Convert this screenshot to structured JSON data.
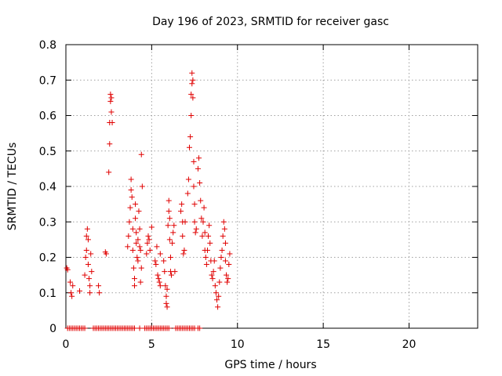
{
  "chart_data": {
    "type": "scatter",
    "title": "Day 196 of 2023, SRMTID for receiver gasc",
    "xlabel": "GPS time / hours",
    "ylabel": "SRMTID / TECUs",
    "xlim": [
      0,
      24
    ],
    "ylim": [
      0,
      0.8
    ],
    "xticks": [
      0,
      5,
      10,
      15,
      20
    ],
    "yticks": [
      0,
      0.1,
      0.2,
      0.3,
      0.4,
      0.5,
      0.6,
      0.7,
      0.8
    ],
    "xtick_labels": [
      "0",
      "5",
      "10",
      "15",
      "20"
    ],
    "ytick_labels": [
      "0",
      "0.1",
      "0.2",
      "0.3",
      "0.4",
      "0.5",
      "0.6",
      "0.7",
      "0.8"
    ],
    "grid": true,
    "marker": "+",
    "color": "#e00000",
    "series": [
      {
        "name": "SRMTID",
        "points": [
          [
            0.05,
            0.17
          ],
          [
            0.1,
            0.165
          ],
          [
            0.25,
            0.13
          ],
          [
            0.3,
            0.1
          ],
          [
            0.35,
            0.09
          ],
          [
            0.4,
            0.12
          ],
          [
            0.8,
            0.105
          ],
          [
            1.1,
            0.15
          ],
          [
            1.15,
            0.2
          ],
          [
            1.2,
            0.22
          ],
          [
            1.2,
            0.26
          ],
          [
            1.25,
            0.28
          ],
          [
            1.3,
            0.25
          ],
          [
            1.3,
            0.18
          ],
          [
            1.35,
            0.14
          ],
          [
            1.4,
            0.1
          ],
          [
            1.4,
            0.12
          ],
          [
            1.45,
            0.21
          ],
          [
            1.5,
            0.16
          ],
          [
            1.9,
            0.12
          ],
          [
            1.95,
            0.1
          ],
          [
            2.3,
            0.215
          ],
          [
            2.35,
            0.21
          ],
          [
            2.5,
            0.44
          ],
          [
            2.55,
            0.52
          ],
          [
            2.55,
            0.58
          ],
          [
            2.6,
            0.64
          ],
          [
            2.6,
            0.66
          ],
          [
            2.65,
            0.65
          ],
          [
            2.65,
            0.61
          ],
          [
            2.7,
            0.58
          ],
          [
            3.6,
            0.23
          ],
          [
            3.65,
            0.26
          ],
          [
            3.7,
            0.3
          ],
          [
            3.75,
            0.34
          ],
          [
            3.8,
            0.39
          ],
          [
            3.8,
            0.42
          ],
          [
            3.85,
            0.37
          ],
          [
            3.9,
            0.28
          ],
          [
            3.9,
            0.22
          ],
          [
            3.95,
            0.17
          ],
          [
            4.0,
            0.12
          ],
          [
            4.0,
            0.14
          ],
          [
            4.05,
            0.35
          ],
          [
            4.05,
            0.31
          ],
          [
            4.1,
            0.27
          ],
          [
            4.1,
            0.24
          ],
          [
            4.15,
            0.2
          ],
          [
            4.2,
            0.19
          ],
          [
            4.2,
            0.25
          ],
          [
            4.25,
            0.33
          ],
          [
            4.3,
            0.23
          ],
          [
            4.35,
            0.22
          ],
          [
            4.4,
            0.17
          ],
          [
            4.4,
            0.49
          ],
          [
            4.45,
            0.4
          ],
          [
            4.35,
            0.13
          ],
          [
            4.3,
            0.28
          ],
          [
            4.7,
            0.21
          ],
          [
            4.75,
            0.24
          ],
          [
            4.8,
            0.26
          ],
          [
            4.85,
            0.25
          ],
          [
            4.9,
            0.22
          ],
          [
            5.0,
            0.285
          ],
          [
            5.2,
            0.19
          ],
          [
            5.25,
            0.18
          ],
          [
            5.3,
            0.23
          ],
          [
            5.35,
            0.15
          ],
          [
            5.4,
            0.14
          ],
          [
            5.45,
            0.13
          ],
          [
            5.5,
            0.12
          ],
          [
            5.5,
            0.21
          ],
          [
            5.7,
            0.19
          ],
          [
            5.75,
            0.16
          ],
          [
            5.8,
            0.12
          ],
          [
            5.85,
            0.09
          ],
          [
            5.85,
            0.07
          ],
          [
            5.9,
            0.06
          ],
          [
            5.9,
            0.11
          ],
          [
            5.95,
            0.29
          ],
          [
            6.0,
            0.33
          ],
          [
            6.0,
            0.36
          ],
          [
            6.05,
            0.31
          ],
          [
            6.05,
            0.25
          ],
          [
            6.1,
            0.2
          ],
          [
            6.1,
            0.16
          ],
          [
            6.15,
            0.15
          ],
          [
            6.2,
            0.24
          ],
          [
            6.25,
            0.27
          ],
          [
            6.3,
            0.29
          ],
          [
            6.35,
            0.16
          ],
          [
            6.7,
            0.33
          ],
          [
            6.75,
            0.35
          ],
          [
            6.8,
            0.3
          ],
          [
            6.8,
            0.26
          ],
          [
            6.85,
            0.21
          ],
          [
            6.9,
            0.22
          ],
          [
            6.95,
            0.3
          ],
          [
            7.1,
            0.38
          ],
          [
            7.15,
            0.42
          ],
          [
            7.2,
            0.51
          ],
          [
            7.25,
            0.54
          ],
          [
            7.3,
            0.6
          ],
          [
            7.3,
            0.66
          ],
          [
            7.35,
            0.69
          ],
          [
            7.35,
            0.72
          ],
          [
            7.4,
            0.7
          ],
          [
            7.4,
            0.65
          ],
          [
            7.45,
            0.47
          ],
          [
            7.45,
            0.4
          ],
          [
            7.5,
            0.35
          ],
          [
            7.5,
            0.3
          ],
          [
            7.55,
            0.27
          ],
          [
            7.6,
            0.28
          ],
          [
            7.7,
            0.45
          ],
          [
            7.75,
            0.48
          ],
          [
            7.8,
            0.41
          ],
          [
            7.85,
            0.36
          ],
          [
            7.9,
            0.31
          ],
          [
            7.95,
            0.26
          ],
          [
            8.0,
            0.3
          ],
          [
            8.05,
            0.34
          ],
          [
            8.1,
            0.27
          ],
          [
            8.1,
            0.22
          ],
          [
            8.15,
            0.2
          ],
          [
            8.2,
            0.18
          ],
          [
            8.25,
            0.22
          ],
          [
            8.3,
            0.26
          ],
          [
            8.35,
            0.29
          ],
          [
            8.4,
            0.24
          ],
          [
            8.45,
            0.19
          ],
          [
            8.5,
            0.15
          ],
          [
            8.55,
            0.14
          ],
          [
            8.6,
            0.16
          ],
          [
            8.65,
            0.19
          ],
          [
            8.7,
            0.12
          ],
          [
            8.75,
            0.1
          ],
          [
            8.8,
            0.08
          ],
          [
            8.85,
            0.06
          ],
          [
            8.9,
            0.09
          ],
          [
            8.95,
            0.13
          ],
          [
            9.0,
            0.17
          ],
          [
            9.05,
            0.2
          ],
          [
            9.1,
            0.22
          ],
          [
            9.15,
            0.26
          ],
          [
            9.2,
            0.3
          ],
          [
            9.25,
            0.28
          ],
          [
            9.3,
            0.24
          ],
          [
            9.3,
            0.19
          ],
          [
            9.35,
            0.15
          ],
          [
            9.4,
            0.13
          ],
          [
            9.45,
            0.14
          ],
          [
            9.5,
            0.18
          ],
          [
            9.55,
            0.21
          ]
        ],
        "zero_points_x": [
          0.1,
          0.2,
          0.3,
          0.4,
          0.5,
          0.6,
          0.7,
          0.8,
          0.9,
          1.0,
          1.1,
          1.6,
          1.7,
          1.8,
          1.9,
          2.0,
          2.1,
          2.2,
          2.3,
          2.4,
          2.5,
          2.6,
          2.7,
          2.8,
          2.9,
          3.0,
          3.1,
          3.2,
          3.3,
          3.4,
          3.5,
          3.6,
          3.7,
          3.8,
          3.9,
          4.0,
          4.3,
          4.6,
          4.7,
          4.8,
          4.9,
          5.0,
          5.1,
          5.2,
          5.3,
          5.4,
          5.5,
          5.6,
          5.7,
          5.8,
          5.9,
          6.0,
          6.4,
          6.5,
          6.6,
          6.7,
          6.8,
          6.9,
          7.0,
          7.1,
          7.2,
          7.3,
          7.4,
          7.5,
          7.7,
          7.8
        ]
      }
    ]
  }
}
